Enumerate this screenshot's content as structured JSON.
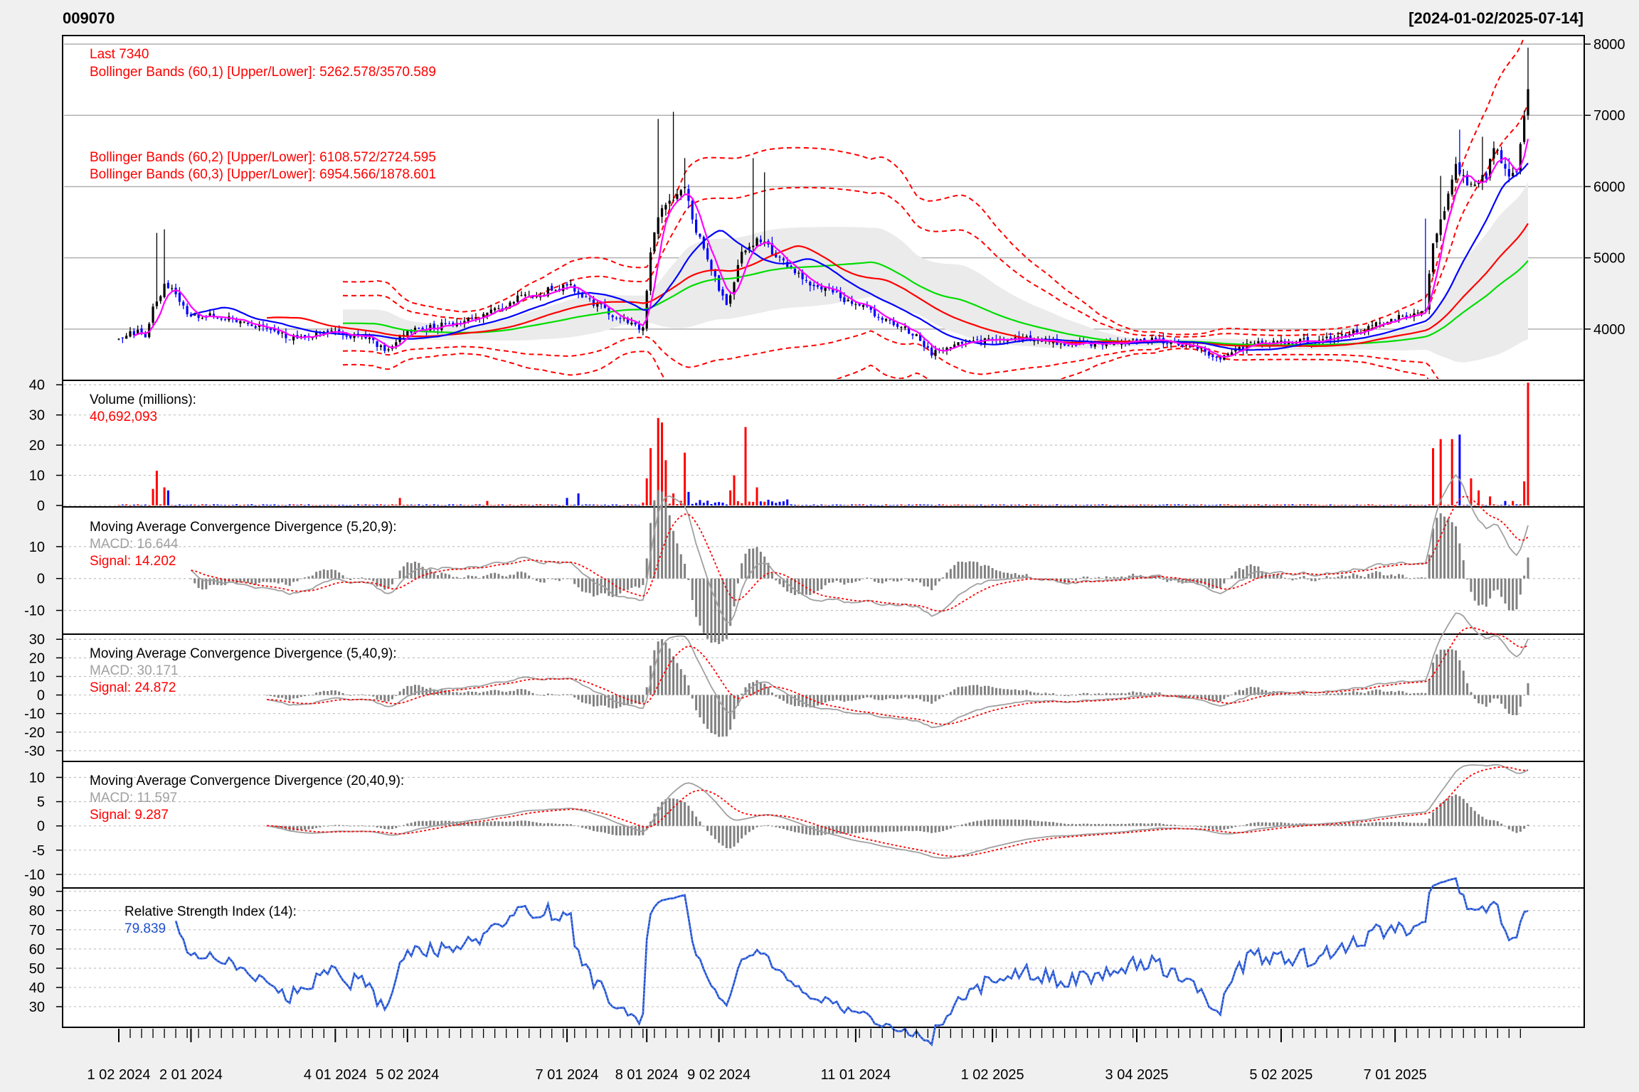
{
  "header": {
    "symbol": "009070",
    "date_range": "[2024-01-02/2025-07-14]"
  },
  "colors": {
    "price_up": "#000000",
    "price_down": "#0000ff",
    "bollinger": "#ff0000",
    "sma_fast": "#ff00ff",
    "sma_mid": "#0000ff",
    "sma_slow": "#ff0000",
    "sma_long": "#00dd00",
    "volume_up": "#ff0000",
    "volume_down": "#0000ff",
    "macd_line": "#a0a0a0",
    "signal_line": "#ff0000",
    "histogram": "#808080",
    "rsi": "#1f4fcf",
    "label_red": "#ff0000",
    "label_gray": "#a0a0a0",
    "label_blue": "#1f4fcf"
  },
  "panels": {
    "price": {
      "last_label": "Last 7340",
      "bb1_label": "Bollinger Bands (60,1) [Upper/Lower]: 5262.578/3570.589",
      "bb2_label": "Bollinger Bands (60,2) [Upper/Lower]: 6108.572/2724.595",
      "bb3_label": "Bollinger Bands (60,3) [Upper/Lower]: 6954.566/1878.601",
      "yticks": [
        "4000",
        "5000",
        "6000",
        "7000",
        "8000"
      ]
    },
    "volume": {
      "title": "Volume (millions):",
      "value": "40,692,093",
      "yticks": [
        "0",
        "10",
        "20",
        "30",
        "40"
      ]
    },
    "macd1": {
      "title": "Moving Average Convergence Divergence (5,20,9):",
      "macd": "MACD: 16.644",
      "signal": "Signal: 14.202",
      "yticks": [
        "-10",
        "0",
        "10"
      ]
    },
    "macd2": {
      "title": "Moving Average Convergence Divergence (5,40,9):",
      "macd": "MACD: 30.171",
      "signal": "Signal: 24.872",
      "yticks": [
        "-30",
        "-20",
        "-10",
        "0",
        "10",
        "20",
        "30"
      ]
    },
    "macd3": {
      "title": "Moving Average Convergence Divergence (20,40,9):",
      "macd": "MACD: 11.597",
      "signal": "Signal: 9.287",
      "yticks": [
        "-10",
        "-5",
        "0",
        "5",
        "10"
      ]
    },
    "rsi": {
      "title": "Relative Strength Index (14):",
      "value": "79.839",
      "yticks": [
        "30",
        "40",
        "50",
        "60",
        "70",
        "80",
        "90"
      ]
    }
  },
  "x_axis": {
    "labels": [
      "1 02 2024",
      "2 01 2024",
      "4 01 2024",
      "5 02 2024",
      "7 01 2024",
      "8 01 2024",
      "9 02 2024",
      "11 01 2024",
      "1 02 2025",
      "3 04 2025",
      "5 02 2025",
      "7 01 2025"
    ],
    "label_index": [
      0,
      19,
      57,
      76,
      118,
      139,
      158,
      194,
      230,
      268,
      306,
      336
    ]
  },
  "chart_data": {
    "type": "line",
    "title": "009070",
    "date_range": "[2024-01-02/2025-07-14]",
    "n_bars": 372,
    "panels": [
      {
        "name": "price",
        "ylim": [
          3300,
          8100
        ],
        "close_keypoints": [
          [
            0,
            3900
          ],
          [
            5,
            3950
          ],
          [
            7,
            3900
          ],
          [
            9,
            4300
          ],
          [
            12,
            4600
          ],
          [
            15,
            4500
          ],
          [
            18,
            4200
          ],
          [
            25,
            4200
          ],
          [
            35,
            4080
          ],
          [
            45,
            3870
          ],
          [
            55,
            3970
          ],
          [
            65,
            3880
          ],
          [
            70,
            3700
          ],
          [
            76,
            3960
          ],
          [
            85,
            4050
          ],
          [
            95,
            4180
          ],
          [
            105,
            4430
          ],
          [
            112,
            4520
          ],
          [
            118,
            4620
          ],
          [
            124,
            4400
          ],
          [
            132,
            4150
          ],
          [
            138,
            4000
          ],
          [
            140,
            5100
          ],
          [
            142,
            5600
          ],
          [
            145,
            5800
          ],
          [
            149,
            5950
          ],
          [
            152,
            5400
          ],
          [
            157,
            4700
          ],
          [
            160,
            4300
          ],
          [
            164,
            5100
          ],
          [
            168,
            5250
          ],
          [
            171,
            5150
          ],
          [
            176,
            4900
          ],
          [
            182,
            4650
          ],
          [
            192,
            4400
          ],
          [
            198,
            4250
          ],
          [
            204,
            4100
          ],
          [
            210,
            3900
          ],
          [
            214,
            3650
          ],
          [
            220,
            3800
          ],
          [
            230,
            3840
          ],
          [
            240,
            3860
          ],
          [
            250,
            3780
          ],
          [
            260,
            3790
          ],
          [
            270,
            3850
          ],
          [
            279,
            3800
          ],
          [
            290,
            3600
          ],
          [
            298,
            3790
          ],
          [
            306,
            3800
          ],
          [
            318,
            3860
          ],
          [
            326,
            3960
          ],
          [
            336,
            4150
          ],
          [
            344,
            4270
          ],
          [
            346,
            5200
          ],
          [
            349,
            5700
          ],
          [
            352,
            6300
          ],
          [
            356,
            6000
          ],
          [
            360,
            6150
          ],
          [
            362,
            6600
          ],
          [
            365,
            6200
          ],
          [
            368,
            6150
          ],
          [
            371,
            7340
          ]
        ],
        "high_keypoints": [
          [
            10,
            5350
          ],
          [
            12,
            5400
          ],
          [
            142,
            6950
          ],
          [
            146,
            7050
          ],
          [
            149,
            6400
          ],
          [
            167,
            6400
          ],
          [
            170,
            6200
          ],
          [
            344,
            5550
          ],
          [
            348,
            6150
          ],
          [
            353,
            6800
          ],
          [
            359,
            6700
          ],
          [
            366,
            6400
          ],
          [
            371,
            7950
          ]
        ],
        "volume_spike_keypoints": [
          [
            9,
            5.5
          ],
          [
            10,
            11.5
          ],
          [
            12,
            6
          ],
          [
            13,
            5
          ],
          [
            74,
            2.5
          ],
          [
            97,
            1.5
          ],
          [
            118,
            2.5
          ],
          [
            121,
            4
          ],
          [
            139,
            9
          ],
          [
            140,
            19
          ],
          [
            142,
            29
          ],
          [
            143,
            27.5
          ],
          [
            144,
            15
          ],
          [
            146,
            4
          ],
          [
            149,
            17.5
          ],
          [
            150,
            4.5
          ],
          [
            161,
            5
          ],
          [
            162,
            10
          ],
          [
            165,
            26
          ],
          [
            168,
            6
          ],
          [
            176,
            2
          ],
          [
            346,
            19
          ],
          [
            348,
            22
          ],
          [
            351,
            22
          ],
          [
            353,
            23.5
          ],
          [
            356,
            9
          ],
          [
            358,
            5
          ],
          [
            361,
            3
          ],
          [
            365,
            1.5
          ],
          [
            367,
            1.5
          ],
          [
            370,
            8
          ],
          [
            371,
            40.7
          ]
        ],
        "moving_averages": [
          "SMA 5 (magenta)",
          "SMA 20 (blue)",
          "SMA 40 (red)",
          "SMA 60 (green)"
        ],
        "bollinger_bands": [
          "(60,1)",
          "(60,2)",
          "(60,3)"
        ],
        "bollinger_values": {
          "upper_1": 5262.578,
          "lower_1": 3570.589,
          "upper_2": 6108.572,
          "lower_2": 2724.595,
          "upper_3": 6954.566,
          "lower_3": 1878.601
        },
        "last": 7340
      },
      {
        "name": "volume",
        "unit": "millions",
        "ylim": [
          0,
          41
        ],
        "last": 40692093
      },
      {
        "name": "macd(5,20,9)",
        "ylim": [
          -17,
          22
        ],
        "macd": 16.644,
        "signal": 14.202
      },
      {
        "name": "macd(5,40,9)",
        "ylim": [
          -35,
          32
        ],
        "macd": 30.171,
        "signal": 24.872
      },
      {
        "name": "macd(20,40,9)",
        "ylim": [
          -12.5,
          13
        ],
        "macd": 11.597,
        "signal": 9.287
      },
      {
        "name": "rsi(14)",
        "ylim": [
          20,
          91
        ],
        "value": 79.839
      }
    ]
  }
}
